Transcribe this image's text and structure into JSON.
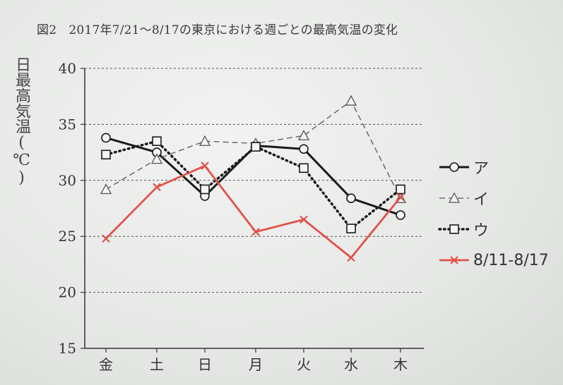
{
  "title": "図2　2017年7/21～8/17の東京における週ごとの最高気温の変化",
  "colors": {
    "series_a": "#1a1a1a",
    "series_i": "#555555",
    "series_u": "#1a1a1a",
    "series_red": "#e0534a",
    "grid": "#555555"
  },
  "chart_data": {
    "type": "line",
    "ylabel": "日最高気温(℃)",
    "xlabel": "",
    "ylim": [
      15,
      40
    ],
    "yticks": [
      "15",
      "20",
      "25",
      "30",
      "35",
      "40"
    ],
    "categories": [
      "金",
      "土",
      "日",
      "月",
      "火",
      "水",
      "木"
    ],
    "grid": "horizontal dashed",
    "legend_position": "right",
    "series": [
      {
        "name": "ア",
        "marker": "circle",
        "line": "solid",
        "values": [
          33.8,
          32.5,
          28.6,
          33.1,
          32.8,
          28.4,
          26.9
        ]
      },
      {
        "name": "イ",
        "marker": "triangle",
        "line": "dashed",
        "values": [
          29.2,
          31.9,
          33.5,
          33.3,
          34.0,
          37.1,
          28.4
        ]
      },
      {
        "name": "ウ",
        "marker": "square",
        "line": "dotted",
        "values": [
          32.3,
          33.5,
          29.2,
          33.0,
          31.1,
          25.7,
          29.2
        ]
      },
      {
        "name": "8/11-8/17",
        "marker": "x",
        "line": "solid",
        "values": [
          24.8,
          29.4,
          31.3,
          25.4,
          26.5,
          23.1,
          28.5
        ]
      }
    ]
  }
}
